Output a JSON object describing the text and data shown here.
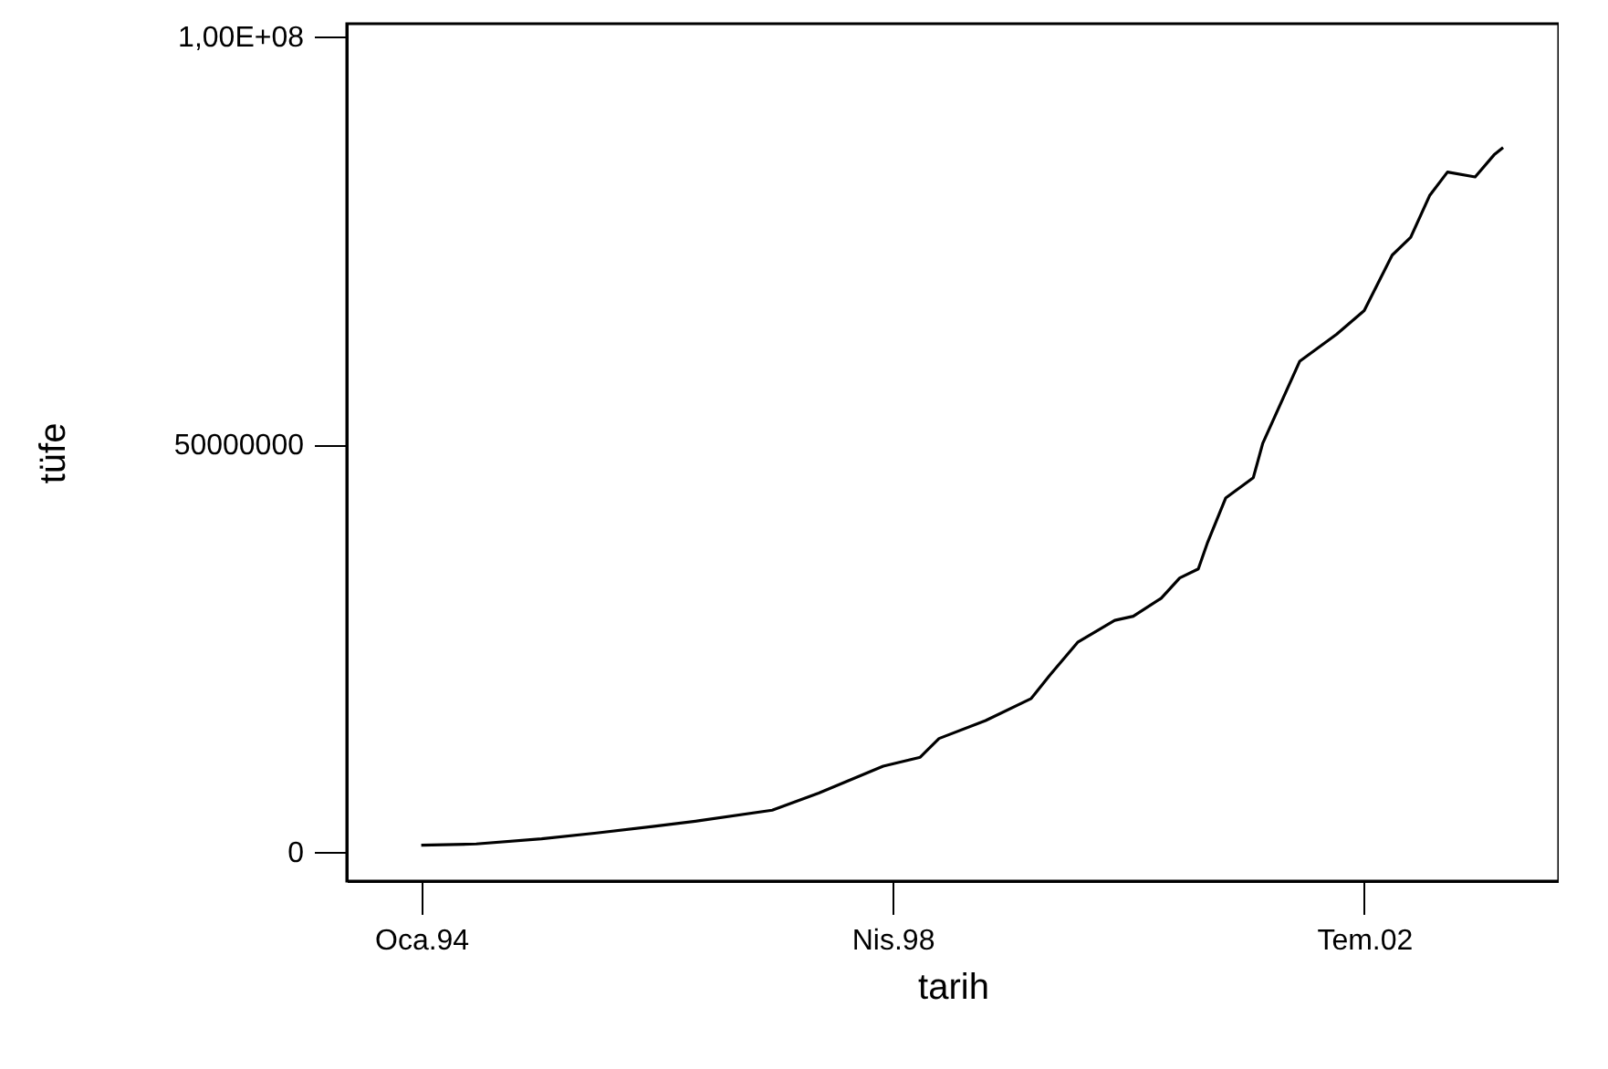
{
  "chart_data": {
    "type": "line",
    "xlabel": "tarih",
    "ylabel": "tüfe",
    "x": [
      "1994-01",
      "1994-07",
      "1995-02",
      "1995-08",
      "1996-02",
      "1996-07",
      "1997-03",
      "1997-08",
      "1998-03",
      "1998-07",
      "1998-09",
      "1999-02",
      "1999-07",
      "1999-09",
      "1999-12",
      "2000-04",
      "2000-06",
      "2000-09",
      "2000-11",
      "2001-01",
      "2001-02",
      "2001-04",
      "2001-07",
      "2001-08",
      "2001-12",
      "2002-04",
      "2002-07",
      "2002-10",
      "2002-12",
      "2003-02",
      "2003-04",
      "2003-07",
      "2003-09",
      "2003-10"
    ],
    "series": [
      {
        "color": "#000000",
        "values": [
          800000,
          960000,
          1600000,
          2300000,
          3100000,
          3800000,
          5100000,
          7200000,
          10500000,
          11600000,
          13900000,
          16100000,
          18800000,
          21700000,
          25700000,
          28400000,
          28900000,
          31100000,
          33600000,
          34700000,
          38000000,
          43400000,
          45900000,
          50100000,
          60200000,
          63500000,
          66400000,
          73200000,
          75400000,
          80500000,
          83400000,
          82800000,
          85500000,
          86400000
        ]
      }
    ],
    "xlim": [
      "1993-05",
      "2004-04"
    ],
    "xticks": [
      {
        "value": "1994-01",
        "label": "Oca.94"
      },
      {
        "value": "1998-04",
        "label": "Nis.98"
      },
      {
        "value": "2002-07",
        "label": "Tem.02"
      }
    ],
    "ylim": [
      -3600000,
      101600000
    ],
    "yticks": [
      {
        "value": 0,
        "label": "0"
      },
      {
        "value": 50000000,
        "label": "50000000"
      },
      {
        "value": 100000000,
        "label": "1,00E+08"
      }
    ],
    "grid": false
  }
}
